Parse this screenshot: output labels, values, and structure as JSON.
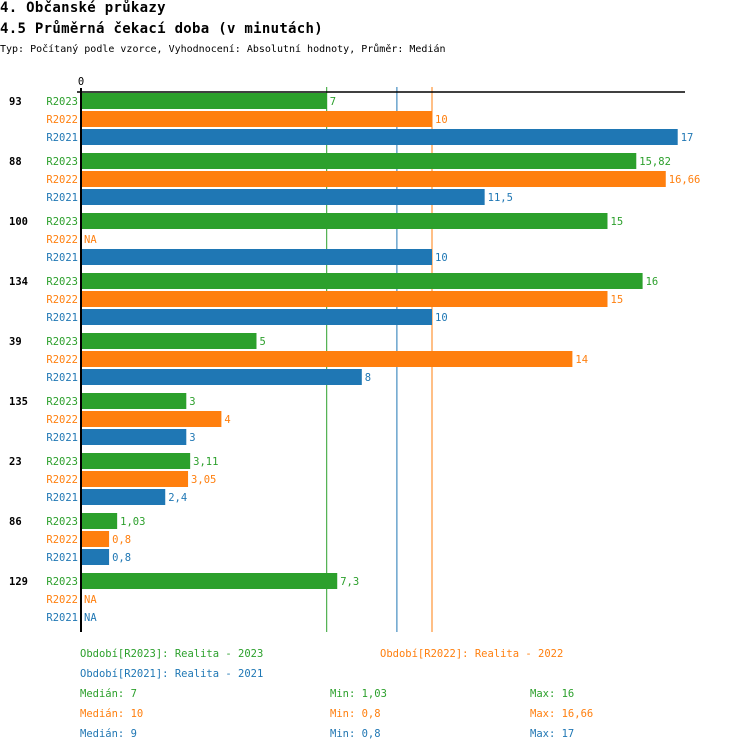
{
  "header": {
    "section_title": "4. Občanské průkazy",
    "chart_title": "4.5 Průměrná čekací doba (v minutách)",
    "subtitle": "Typ: Počítaný podle vzorce, Vyhodnocení: Absolutní hodnoty, Průměr: Medián"
  },
  "colors": {
    "R2023": "#2ca02c",
    "R2022": "#ff7f0e",
    "R2021": "#1f77b4"
  },
  "chart_data": {
    "type": "bar",
    "orientation": "horizontal",
    "title": "4.5 Průměrná čekací doba (v minutách)",
    "xlabel": "",
    "ylabel": "",
    "x_tick_labels": [
      "0"
    ],
    "xlim": [
      0,
      17.3
    ],
    "grid": false,
    "categories": [
      "93",
      "88",
      "100",
      "134",
      "39",
      "135",
      "23",
      "86",
      "129"
    ],
    "series": [
      {
        "name": "R2023",
        "values": [
          7,
          15.82,
          15,
          16,
          5,
          3,
          3.11,
          1.03,
          7.3
        ],
        "labels": [
          "7",
          "15,82",
          "15",
          "16",
          "5",
          "3",
          "3,11",
          "1,03",
          "7,3"
        ]
      },
      {
        "name": "R2022",
        "values": [
          10,
          16.66,
          null,
          15,
          14,
          4,
          3.05,
          0.8,
          null
        ],
        "labels": [
          "10",
          "16,66",
          "NA",
          "15",
          "14",
          "4",
          "3,05",
          "0,8",
          "NA"
        ]
      },
      {
        "name": "R2021",
        "values": [
          17,
          11.5,
          10,
          10,
          8,
          3,
          2.4,
          0.8,
          null
        ],
        "labels": [
          "17",
          "11,5",
          "10",
          "10",
          "8",
          "3",
          "2,4",
          "0,8",
          "NA"
        ]
      }
    ],
    "reference_lines": [
      {
        "series": "R2023",
        "type": "median",
        "value": 7
      },
      {
        "series": "R2021",
        "type": "median",
        "value": 9
      },
      {
        "series": "R2022",
        "type": "median",
        "value": 10
      }
    ],
    "legend": {
      "placement": "bottom",
      "entries": [
        "Období[R2023]: Realita - 2023",
        "Období[R2022]: Realita - 2022",
        "Období[R2021]: Realita - 2021"
      ]
    },
    "stats": [
      {
        "series": "R2023",
        "median": "Medián: 7",
        "min": "Min: 1,03",
        "max": "Max: 16"
      },
      {
        "series": "R2022",
        "median": "Medián: 10",
        "min": "Min: 0,8",
        "max": "Max: 16,66"
      },
      {
        "series": "R2021",
        "median": "Medián: 9",
        "min": "Min: 0,8",
        "max": "Max: 17"
      }
    ]
  }
}
